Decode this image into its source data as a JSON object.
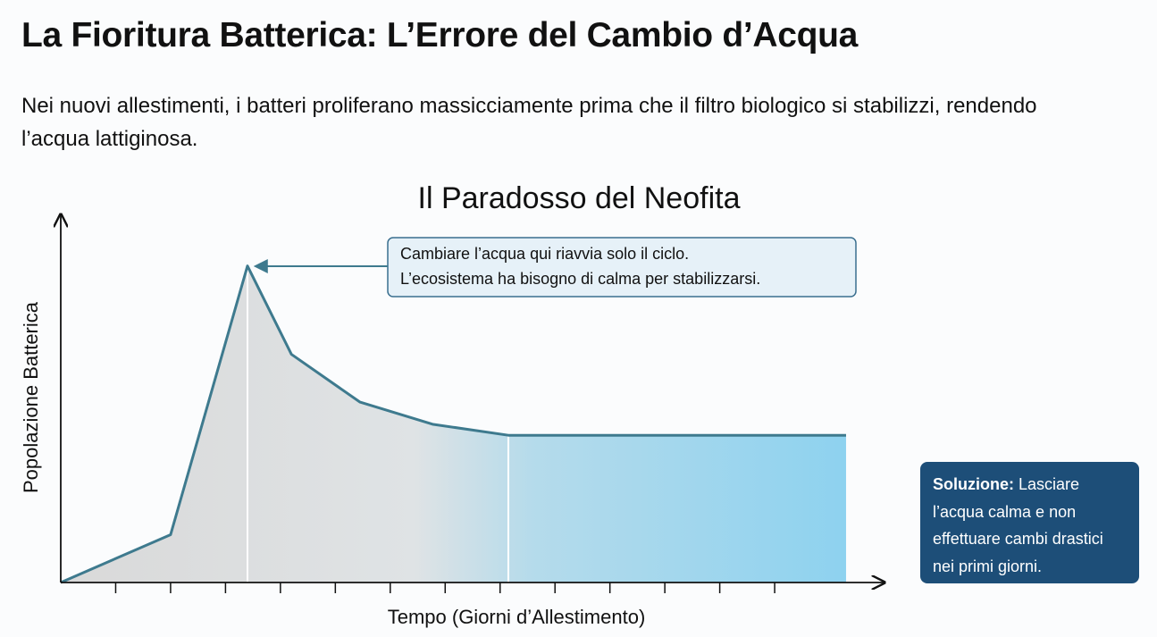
{
  "header": {
    "title": "La Fioritura Batterica: L’Errore del Cambio d’Acqua",
    "description": "Nei nuovi allestimenti, i batteri proliferano massicciamente prima che il filtro biologico si stabilizzi, rendendo l’acqua lattiginosa."
  },
  "chart_data": {
    "type": "area",
    "title": "Il Paradosso del Neofita",
    "x_label": "Tempo (Giorni d’Allestimento)",
    "y_label": "Popolazione Batterica",
    "x": [
      0,
      2,
      3.4,
      4.2,
      5.45,
      6.77,
      8.15,
      14.3
    ],
    "values": [
      0,
      13,
      86,
      62,
      49,
      43,
      40,
      40
    ],
    "color": "#3e7a8e",
    "xlim": [
      0,
      15
    ],
    "ylim": [
      0,
      100
    ],
    "xticks": [
      1,
      2,
      3,
      4,
      5,
      6,
      7,
      8,
      9,
      10,
      11,
      12,
      13
    ],
    "annotation": [
      "Cambiare l’acqua qui riavvia solo il ciclo.",
      "L’ecosistema ha bisogno di calma per stabilizzarsi."
    ]
  },
  "solution": {
    "label": "Soluzione:",
    "text": "Lasciare l’acqua calma e non effettuare cambi drastici nei primi giorni."
  }
}
